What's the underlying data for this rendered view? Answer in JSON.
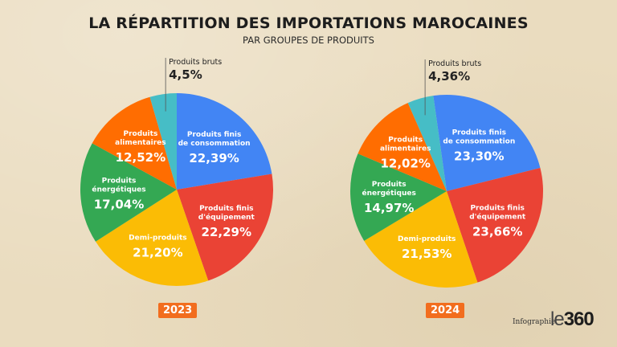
{
  "header": {
    "title": "LA RÉPARTITION DES IMPORTATIONS MAROCAINES",
    "subtitle": "PAR GROUPES DE PRODUITS"
  },
  "footer": {
    "credit": "Infographie",
    "logo_prefix": "le",
    "logo_number": "360"
  },
  "chart_data": [
    {
      "type": "pie",
      "title": "2023",
      "series": [
        {
          "name": "Produits finis de consommation",
          "label_lines": [
            "Produits finis",
            "de consommation"
          ],
          "value": 22.39,
          "label": "22,39%",
          "color": "#4285f4"
        },
        {
          "name": "Produits finis d'équipement",
          "label_lines": [
            "Produits finis",
            "d'équipement"
          ],
          "value": 22.29,
          "label": "22,29%",
          "color": "#ea4335"
        },
        {
          "name": "Demi-produits",
          "label_lines": [
            "Demi-produits"
          ],
          "value": 21.2,
          "label": "21,20%",
          "color": "#fbbc05"
        },
        {
          "name": "Produits énergétiques",
          "label_lines": [
            "Produits",
            "énergétiques"
          ],
          "value": 17.04,
          "label": "17,04%",
          "color": "#34a853"
        },
        {
          "name": "Produits alimentaires",
          "label_lines": [
            "Produits",
            "alimentaires"
          ],
          "value": 12.52,
          "label": "12,52%",
          "color": "#ff6d01"
        },
        {
          "name": "Produits bruts",
          "label_lines": [
            "Produits bruts"
          ],
          "value": 4.5,
          "label": "4,5%",
          "color": "#46bdc6",
          "external": true
        }
      ]
    },
    {
      "type": "pie",
      "title": "2024",
      "series": [
        {
          "name": "Produits finis de consommation",
          "label_lines": [
            "Produits finis",
            "de consommation"
          ],
          "value": 23.3,
          "label": "23,30%",
          "color": "#4285f4"
        },
        {
          "name": "Produits finis d'équipement",
          "label_lines": [
            "Produits finis",
            "d'équipement"
          ],
          "value": 23.66,
          "label": "23,66%",
          "color": "#ea4335"
        },
        {
          "name": "Demi-produits",
          "label_lines": [
            "Demi-produits"
          ],
          "value": 21.53,
          "label": "21,53%",
          "color": "#fbbc05"
        },
        {
          "name": "Produits énergétiques",
          "label_lines": [
            "Produits",
            "énergétiques"
          ],
          "value": 14.97,
          "label": "14,97%",
          "color": "#34a853"
        },
        {
          "name": "Produits alimentaires",
          "label_lines": [
            "Produits",
            "alimentaires"
          ],
          "value": 12.02,
          "label": "12,02%",
          "color": "#ff6d01"
        },
        {
          "name": "Produits bruts",
          "label_lines": [
            "Produits bruts"
          ],
          "value": 4.36,
          "label": "4,36%",
          "color": "#46bdc6",
          "external": true
        }
      ]
    }
  ]
}
